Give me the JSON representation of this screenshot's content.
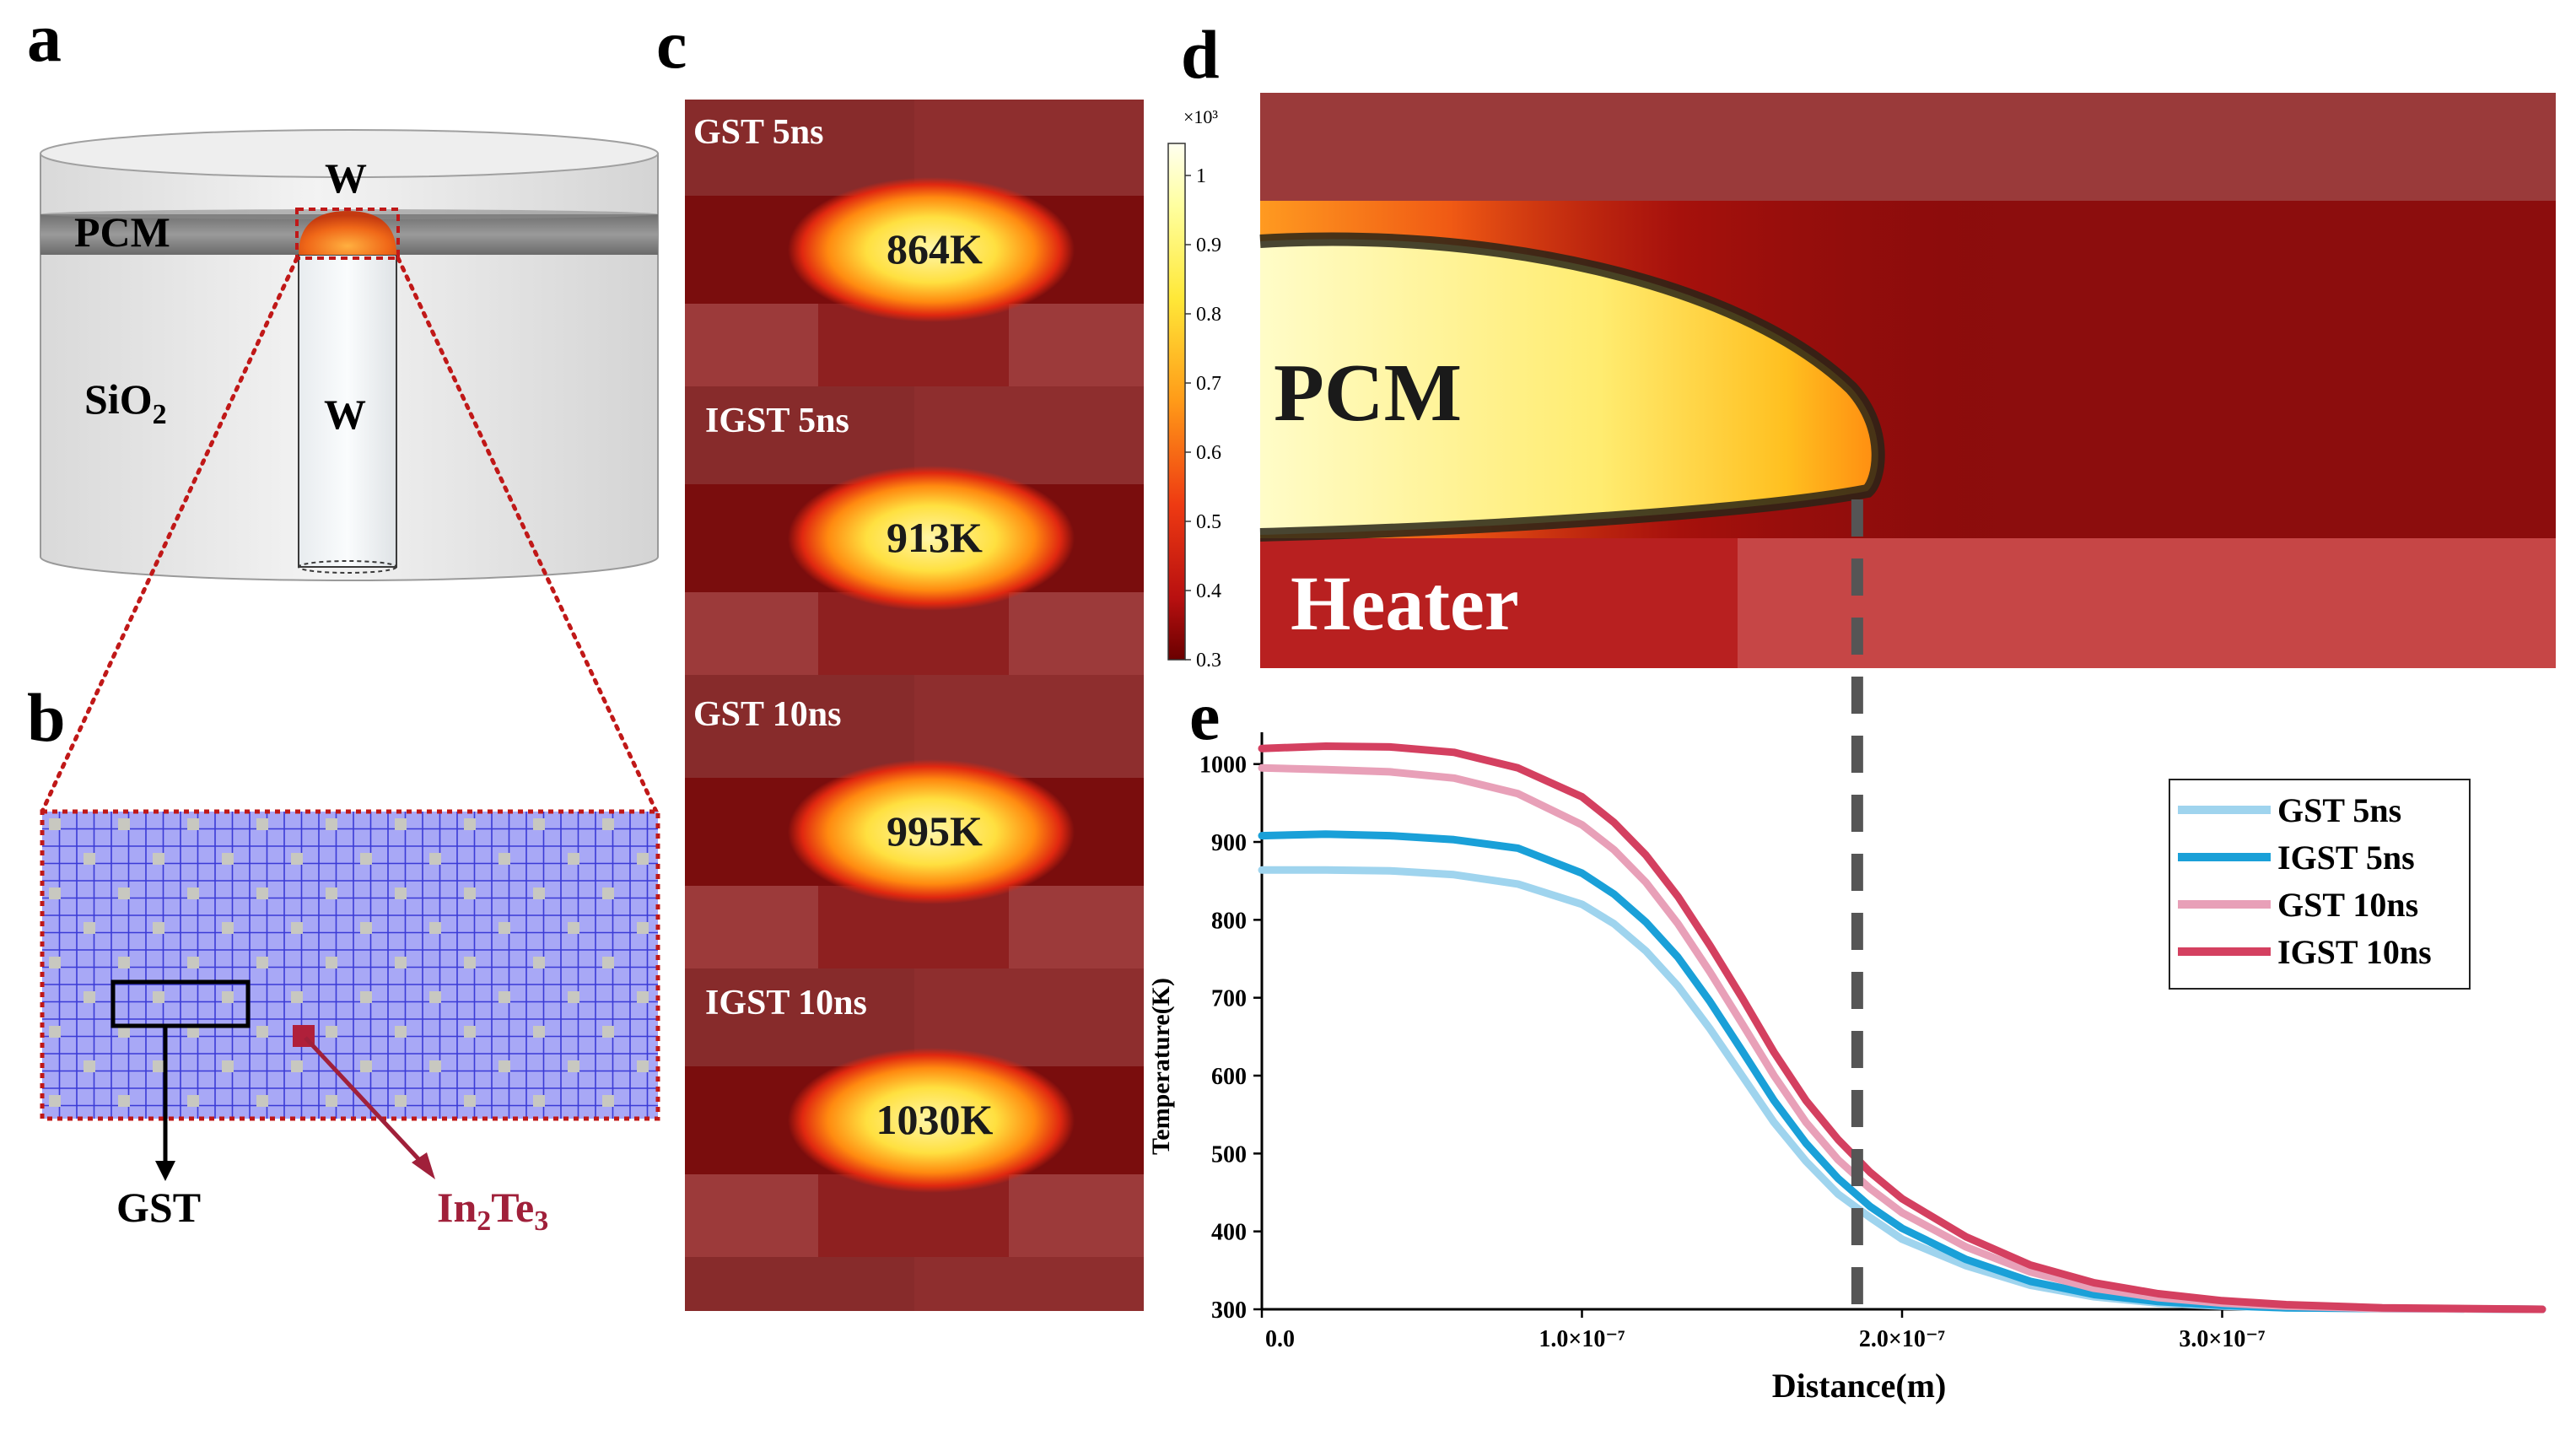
{
  "panel_labels": {
    "a": "a",
    "b": "b",
    "c": "c",
    "d": "d",
    "e": "e"
  },
  "panel_a": {
    "label_w_top": "W",
    "label_pcm": "PCM",
    "label_sio2_main": "SiO",
    "label_sio2_sub": "2",
    "label_w_pillar": "W"
  },
  "panel_b": {
    "label_gst": "GST",
    "label_in": "In",
    "label_sub1": "2",
    "label_te": "Te",
    "label_sub2": "3",
    "colors": {
      "grid_bg": "#a8a8f6",
      "grid_line": "#3b3bd6",
      "gst_cell": "#c8c8c0",
      "in2te3": "#b0203a"
    }
  },
  "panel_c": {
    "maps": [
      {
        "label": "GST 5ns",
        "temp": "864K"
      },
      {
        "label": "IGST 5ns",
        "temp": "913K"
      },
      {
        "label": "GST 10ns",
        "temp": "995K"
      },
      {
        "label": "IGST 10ns",
        "temp": "1030K"
      }
    ]
  },
  "panel_d": {
    "colorbar_exponent": "×10³",
    "colorbar_ticks": [
      "1",
      "0.9",
      "0.8",
      "0.7",
      "0.6",
      "0.5",
      "0.4",
      "0.3"
    ],
    "label_pcm": "PCM",
    "label_heater": "Heater"
  },
  "chart_data": {
    "type": "line",
    "xlabel": "Distance(m)",
    "ylabel": "Temperature(K)",
    "xlim": [
      0,
      4e-07
    ],
    "ylim": [
      300,
      1030
    ],
    "xticks": [
      0,
      1e-07,
      2e-07,
      3e-07
    ],
    "xtick_labels": [
      "0.0",
      "1.0×10⁻⁷",
      "2.0×10⁻⁷",
      "3.0×10⁻⁷"
    ],
    "yticks": [
      300,
      400,
      500,
      600,
      700,
      800,
      900,
      1000
    ],
    "ytick_labels": [
      "300",
      "400",
      "500",
      "600",
      "700",
      "800",
      "900",
      "1000"
    ],
    "legend_position": "top-right",
    "vline_x": 1.86e-07,
    "x": [
      0,
      2e-08,
      4e-08,
      6e-08,
      8e-08,
      1e-07,
      1.1e-07,
      1.2e-07,
      1.3e-07,
      1.4e-07,
      1.5e-07,
      1.6e-07,
      1.7e-07,
      1.8e-07,
      1.9e-07,
      2e-07,
      2.2e-07,
      2.4e-07,
      2.6e-07,
      2.8e-07,
      3e-07,
      3.2e-07,
      3.5e-07,
      4e-07
    ],
    "series": [
      {
        "name": "GST  5ns",
        "color": "#9fd4ee",
        "values": [
          864,
          864,
          863,
          858,
          846,
          820,
          795,
          760,
          715,
          660,
          600,
          540,
          490,
          448,
          418,
          390,
          356,
          331,
          316,
          308,
          304,
          302,
          301,
          300
        ]
      },
      {
        "name": "IGST 5ns",
        "color": "#1aa0d8",
        "values": [
          908,
          910,
          908,
          903,
          892,
          860,
          833,
          797,
          752,
          695,
          632,
          568,
          513,
          468,
          432,
          404,
          364,
          336,
          319,
          310,
          305,
          302,
          301,
          300
        ]
      },
      {
        "name": "GST  10ns",
        "color": "#e8a0b8",
        "values": [
          995,
          993,
          990,
          982,
          962,
          922,
          890,
          848,
          795,
          733,
          667,
          600,
          540,
          492,
          455,
          424,
          380,
          348,
          327,
          315,
          308,
          304,
          301,
          300
        ]
      },
      {
        "name": "IGST 10ns",
        "color": "#d44060",
        "values": [
          1020,
          1023,
          1022,
          1015,
          995,
          958,
          925,
          883,
          830,
          767,
          700,
          630,
          568,
          518,
          476,
          442,
          393,
          357,
          334,
          320,
          311,
          306,
          302,
          300
        ]
      }
    ]
  }
}
